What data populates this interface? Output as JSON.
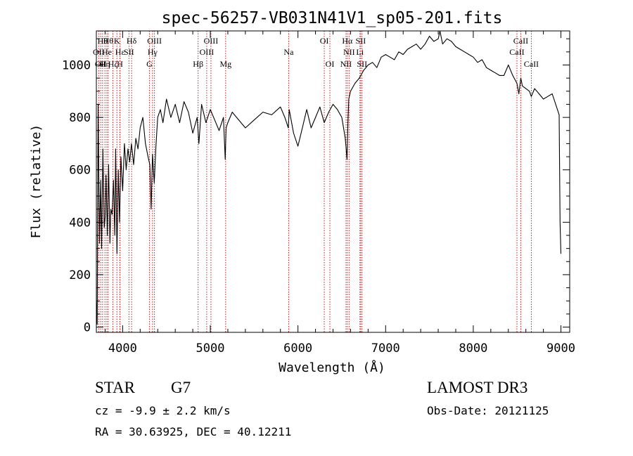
{
  "chart_data": {
    "type": "line",
    "title": "spec-56257-VB031N41V1_sp05-201.fits",
    "xlabel": "Wavelength (Å)",
    "ylabel": "Flux (relative)",
    "xlim": [
      3700,
      9100
    ],
    "ylim": [
      -20,
      1130
    ],
    "xticks": [
      4000,
      5000,
      6000,
      7000,
      8000,
      9000
    ],
    "yticks": [
      0,
      200,
      400,
      600,
      800,
      1000
    ],
    "grid": false,
    "colors": {
      "spectrum": "#000000",
      "line_marker": "#cc0000",
      "axes": "#000000"
    },
    "series": [
      {
        "name": "flux",
        "x": [
          3700,
          3710,
          3720,
          3735,
          3750,
          3760,
          3775,
          3790,
          3800,
          3810,
          3825,
          3840,
          3855,
          3865,
          3880,
          3895,
          3910,
          3920,
          3935,
          3950,
          3965,
          3980,
          4000,
          4020,
          4040,
          4060,
          4080,
          4100,
          4125,
          4150,
          4175,
          4200,
          4230,
          4260,
          4290,
          4310,
          4325,
          4340,
          4360,
          4380,
          4400,
          4430,
          4460,
          4500,
          4550,
          4600,
          4650,
          4700,
          4750,
          4800,
          4850,
          4870,
          4900,
          4950,
          5000,
          5050,
          5100,
          5150,
          5170,
          5180,
          5200,
          5250,
          5300,
          5400,
          5500,
          5600,
          5700,
          5800,
          5850,
          5890,
          5900,
          5950,
          6000,
          6050,
          6100,
          6150,
          6200,
          6250,
          6300,
          6350,
          6400,
          6450,
          6500,
          6540,
          6560,
          6570,
          6580,
          6600,
          6650,
          6700,
          6750,
          6800,
          6850,
          6900,
          6950,
          7000,
          7050,
          7100,
          7150,
          7200,
          7250,
          7300,
          7350,
          7400,
          7450,
          7500,
          7550,
          7600,
          7620,
          7650,
          7700,
          7750,
          7800,
          7850,
          7900,
          7950,
          8000,
          8050,
          8100,
          8150,
          8200,
          8250,
          8300,
          8350,
          8400,
          8450,
          8498,
          8520,
          8542,
          8560,
          8600,
          8640,
          8662,
          8700,
          8750,
          8800,
          8850,
          8900,
          8950,
          8980,
          8990,
          9000
        ],
        "y": [
          100,
          10,
          850,
          320,
          560,
          300,
          680,
          380,
          420,
          580,
          350,
          620,
          320,
          450,
          430,
          560,
          350,
          680,
          280,
          600,
          400,
          650,
          520,
          700,
          600,
          680,
          630,
          700,
          620,
          720,
          680,
          760,
          800,
          700,
          650,
          620,
          450,
          660,
          550,
          690,
          800,
          830,
          780,
          870,
          800,
          850,
          780,
          860,
          820,
          740,
          800,
          700,
          850,
          780,
          830,
          790,
          750,
          800,
          640,
          760,
          780,
          820,
          800,
          760,
          790,
          820,
          810,
          840,
          800,
          760,
          830,
          740,
          690,
          760,
          830,
          760,
          800,
          840,
          780,
          820,
          850,
          830,
          800,
          720,
          640,
          780,
          870,
          900,
          930,
          950,
          980,
          1000,
          1010,
          990,
          1030,
          1040,
          1030,
          1020,
          1050,
          1040,
          1060,
          1070,
          1080,
          1060,
          1080,
          1110,
          1090,
          1100,
          1130,
          1080,
          1100,
          1090,
          1070,
          1060,
          1050,
          1040,
          1030,
          1010,
          1020,
          990,
          980,
          970,
          960,
          960,
          1000,
          960,
          930,
          890,
          950,
          920,
          910,
          900,
          880,
          910,
          890,
          870,
          880,
          890,
          840,
          810,
          400,
          280
        ]
      }
    ],
    "line_markers": [
      {
        "wavelength": 3727,
        "row": 2,
        "label": "OII"
      },
      {
        "wavelength": 3750,
        "row": 3,
        "label": "OII"
      },
      {
        "wavelength": 3771,
        "row": 1,
        "label": "Hθ"
      },
      {
        "wavelength": 3798,
        "row": 3,
        "label": "Hη"
      },
      {
        "wavelength": 3820,
        "row": 2,
        "label": "He"
      },
      {
        "wavelength": 3835,
        "row": 1,
        "label": "Hθ"
      },
      {
        "wavelength": 3889,
        "row": 3,
        "label": "Hζ"
      },
      {
        "wavelength": 3934,
        "row": 1,
        "label": "K"
      },
      {
        "wavelength": 3969,
        "row": 3,
        "label": "H"
      },
      {
        "wavelength": 3970,
        "row": 2,
        "label": "Hε"
      },
      {
        "wavelength": 4072,
        "row": 2,
        "label": "SII"
      },
      {
        "wavelength": 4102,
        "row": 1,
        "label": "Hδ"
      },
      {
        "wavelength": 4305,
        "row": 3,
        "label": "G"
      },
      {
        "wavelength": 4341,
        "row": 2,
        "label": "Hγ"
      },
      {
        "wavelength": 4363,
        "row": 1,
        "label": "OIII"
      },
      {
        "wavelength": 4861,
        "row": 3,
        "label": "Hβ"
      },
      {
        "wavelength": 4959,
        "row": 2,
        "label": "OIII"
      },
      {
        "wavelength": 5007,
        "row": 1,
        "label": "OIII"
      },
      {
        "wavelength": 5175,
        "row": 3,
        "label": "Mg"
      },
      {
        "wavelength": 5894,
        "row": 2,
        "label": "Na"
      },
      {
        "wavelength": 6300,
        "row": 1,
        "label": "OI"
      },
      {
        "wavelength": 6364,
        "row": 3,
        "label": "OI"
      },
      {
        "wavelength": 6548,
        "row": 3,
        "label": "NII"
      },
      {
        "wavelength": 6563,
        "row": 1,
        "label": "Hα"
      },
      {
        "wavelength": 6583,
        "row": 2,
        "label": "NII"
      },
      {
        "wavelength": 6707,
        "row": 2,
        "label": "Li"
      },
      {
        "wavelength": 6716,
        "row": 1,
        "label": "SII"
      },
      {
        "wavelength": 6731,
        "row": 3,
        "label": "SII"
      },
      {
        "wavelength": 8498,
        "row": 2,
        "label": "CaII"
      },
      {
        "wavelength": 8542,
        "row": 1,
        "label": "CaII"
      },
      {
        "wavelength": 8662,
        "row": 3,
        "label": "CaII"
      }
    ]
  },
  "info": {
    "object_class": "STAR",
    "subclass": "G7",
    "survey": "LAMOST DR3",
    "redshift_text": "cz = -9.9 ± 2.2 km/s",
    "obs_date_text": "Obs-Date: 20121125",
    "coord_text": "RA =  30.63925, DEC =  40.12211"
  }
}
